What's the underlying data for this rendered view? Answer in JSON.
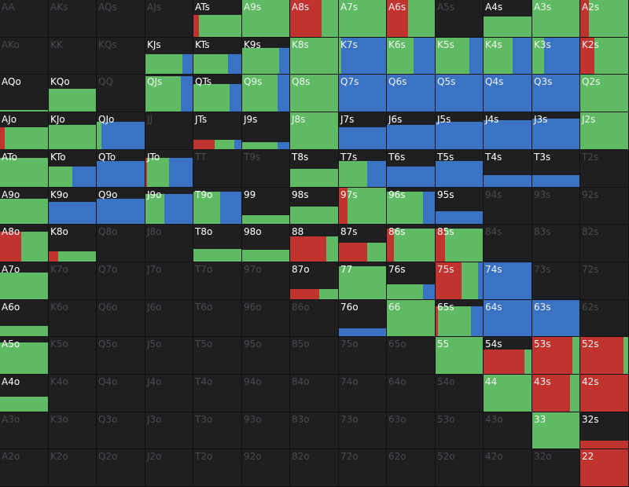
{
  "legend_colors": {
    "raise": "#c0332e",
    "call": "#5fbb63",
    "fold": "#3a73c4"
  },
  "rows": [
    [
      {
        "label": "AA"
      },
      {
        "label": "AKs"
      },
      {
        "label": "AQs"
      },
      {
        "label": "AJs"
      },
      {
        "label": "ATs",
        "h": 0.6,
        "r": 0.12,
        "c": 0.88,
        "f": 0
      },
      {
        "label": "A9s",
        "h": 1,
        "r": 0,
        "c": 1,
        "f": 0
      },
      {
        "label": "A8s",
        "h": 1,
        "r": 0.65,
        "c": 0.35,
        "f": 0
      },
      {
        "label": "A7s",
        "h": 1,
        "r": 0,
        "c": 1,
        "f": 0
      },
      {
        "label": "A6s",
        "h": 1,
        "r": 0.45,
        "c": 0.55,
        "f": 0
      },
      {
        "label": "A5s"
      },
      {
        "label": "A4s",
        "h": 0.55,
        "r": 0,
        "c": 1,
        "f": 0
      },
      {
        "label": "A3s",
        "h": 1,
        "r": 0,
        "c": 1,
        "f": 0
      },
      {
        "label": "A2s",
        "h": 1,
        "r": 0.18,
        "c": 0.82,
        "f": 0
      }
    ],
    [
      {
        "label": "AKo"
      },
      {
        "label": "KK"
      },
      {
        "label": "KQs"
      },
      {
        "label": "KJs",
        "h": 0.55,
        "r": 0,
        "c": 0.78,
        "f": 0.22
      },
      {
        "label": "KTs",
        "h": 0.55,
        "r": 0,
        "c": 0.72,
        "f": 0.28
      },
      {
        "label": "K9s",
        "h": 0.72,
        "r": 0,
        "c": 0.78,
        "f": 0.22
      },
      {
        "label": "K8s",
        "h": 1,
        "r": 0,
        "c": 1,
        "f": 0
      },
      {
        "label": "K7s",
        "h": 1,
        "r": 0,
        "c": 0.05,
        "f": 0.95
      },
      {
        "label": "K6s",
        "h": 1,
        "r": 0,
        "c": 0.55,
        "f": 0.45
      },
      {
        "label": "K5s",
        "h": 1,
        "r": 0,
        "c": 0.72,
        "f": 0.28
      },
      {
        "label": "K4s",
        "h": 1,
        "r": 0,
        "c": 0.6,
        "f": 0.4
      },
      {
        "label": "K3s",
        "h": 1,
        "r": 0,
        "c": 0.25,
        "f": 0.75
      },
      {
        "label": "K2s",
        "h": 1,
        "r": 0.3,
        "c": 0.7,
        "f": 0
      }
    ],
    [
      {
        "label": "AQo",
        "h": 0.04,
        "r": 0,
        "c": 1,
        "f": 0
      },
      {
        "label": "KQo",
        "h": 0.62,
        "r": 0,
        "c": 1,
        "f": 0
      },
      {
        "label": "QQ"
      },
      {
        "label": "QJs",
        "h": 0.95,
        "r": 0,
        "c": 0.75,
        "f": 0.25
      },
      {
        "label": "QTs",
        "h": 0.75,
        "r": 0,
        "c": 0.75,
        "f": 0.25
      },
      {
        "label": "Q9s",
        "h": 1,
        "r": 0,
        "c": 0.75,
        "f": 0.25
      },
      {
        "label": "Q8s",
        "h": 1,
        "r": 0,
        "c": 1,
        "f": 0
      },
      {
        "label": "Q7s",
        "h": 1,
        "r": 0,
        "c": 0,
        "f": 1
      },
      {
        "label": "Q6s",
        "h": 1,
        "r": 0,
        "c": 0,
        "f": 1
      },
      {
        "label": "Q5s",
        "h": 1,
        "r": 0,
        "c": 0,
        "f": 1
      },
      {
        "label": "Q4s",
        "h": 1,
        "r": 0,
        "c": 0,
        "f": 1
      },
      {
        "label": "Q3s",
        "h": 1,
        "r": 0,
        "c": 0,
        "f": 1
      },
      {
        "label": "Q2s",
        "h": 1,
        "r": 0,
        "c": 1,
        "f": 0
      }
    ],
    [
      {
        "label": "AJo",
        "h": 0.6,
        "r": 0.1,
        "c": 0.9,
        "f": 0
      },
      {
        "label": "KJo",
        "h": 0.65,
        "r": 0,
        "c": 1,
        "f": 0
      },
      {
        "label": "QJo",
        "h": 0.75,
        "r": 0,
        "c": 0.1,
        "f": 0.9
      },
      {
        "label": "JJ"
      },
      {
        "label": "JTs",
        "h": 0.25,
        "r": 0.45,
        "c": 0.4,
        "f": 0.15
      },
      {
        "label": "J9s",
        "h": 0.2,
        "r": 0,
        "c": 0.75,
        "f": 0.25
      },
      {
        "label": "J8s",
        "h": 1,
        "r": 0,
        "c": 1,
        "f": 0
      },
      {
        "label": "J7s",
        "h": 0.6,
        "r": 0,
        "c": 0,
        "f": 1
      },
      {
        "label": "J6s",
        "h": 0.65,
        "r": 0,
        "c": 0,
        "f": 1
      },
      {
        "label": "J5s",
        "h": 0.75,
        "r": 0,
        "c": 0,
        "f": 1
      },
      {
        "label": "J4s",
        "h": 0.78,
        "r": 0,
        "c": 0,
        "f": 1
      },
      {
        "label": "J3s",
        "h": 0.82,
        "r": 0,
        "c": 0,
        "f": 1
      },
      {
        "label": "J2s",
        "h": 1,
        "r": 0,
        "c": 1,
        "f": 0
      }
    ],
    [
      {
        "label": "ATo",
        "h": 0.78,
        "r": 0,
        "c": 1,
        "f": 0
      },
      {
        "label": "KTo",
        "h": 0.55,
        "r": 0,
        "c": 0.5,
        "f": 0.5
      },
      {
        "label": "QTo",
        "h": 0.7,
        "r": 0,
        "c": 0,
        "f": 1
      },
      {
        "label": "JTo",
        "h": 0.78,
        "r": 0.04,
        "c": 0.46,
        "f": 0.5
      },
      {
        "label": "TT"
      },
      {
        "label": "T9s"
      },
      {
        "label": "T8s",
        "h": 0.48,
        "r": 0,
        "c": 1,
        "f": 0
      },
      {
        "label": "T7s",
        "h": 0.7,
        "r": 0,
        "c": 0.6,
        "f": 0.4
      },
      {
        "label": "T6s",
        "h": 0.55,
        "r": 0,
        "c": 0,
        "f": 1
      },
      {
        "label": "T5s",
        "h": 0.7,
        "r": 0,
        "c": 0,
        "f": 1
      },
      {
        "label": "T4s",
        "h": 0.32,
        "r": 0,
        "c": 0,
        "f": 1
      },
      {
        "label": "T3s",
        "h": 0.32,
        "r": 0,
        "c": 0,
        "f": 1
      },
      {
        "label": "T2s"
      }
    ],
    [
      {
        "label": "A9o",
        "h": 0.7,
        "r": 0,
        "c": 1,
        "f": 0
      },
      {
        "label": "K9o",
        "h": 0.6,
        "r": 0,
        "c": 0,
        "f": 1
      },
      {
        "label": "Q9o",
        "h": 0.7,
        "r": 0,
        "c": 0,
        "f": 1
      },
      {
        "label": "J9o",
        "h": 0.82,
        "r": 0,
        "c": 0.4,
        "f": 0.6
      },
      {
        "label": "T9o",
        "h": 0.9,
        "r": 0,
        "c": 0.55,
        "f": 0.45
      },
      {
        "label": "99",
        "h": 0.25,
        "r": 0,
        "c": 1,
        "f": 0
      },
      {
        "label": "98s",
        "h": 0.48,
        "r": 0,
        "c": 1,
        "f": 0
      },
      {
        "label": "97s",
        "h": 1,
        "r": 0.18,
        "c": 0.82,
        "f": 0
      },
      {
        "label": "96s",
        "h": 0.9,
        "r": 0,
        "c": 0.75,
        "f": 0.25
      },
      {
        "label": "95s",
        "h": 0.35,
        "r": 0,
        "c": 0,
        "f": 1
      },
      {
        "label": "94s"
      },
      {
        "label": "93s"
      },
      {
        "label": "92s"
      }
    ],
    [
      {
        "label": "A8o",
        "h": 0.8,
        "r": 0.45,
        "c": 0.55,
        "f": 0
      },
      {
        "label": "K8o",
        "h": 0.28,
        "r": 0.2,
        "c": 0.8,
        "f": 0
      },
      {
        "label": "Q8o"
      },
      {
        "label": "J8o"
      },
      {
        "label": "T8o",
        "h": 0.35,
        "r": 0,
        "c": 1,
        "f": 0
      },
      {
        "label": "98o",
        "h": 0.32,
        "r": 0,
        "c": 1,
        "f": 0
      },
      {
        "label": "88",
        "h": 0.68,
        "r": 0.75,
        "c": 0.25,
        "f": 0
      },
      {
        "label": "87s",
        "h": 0.52,
        "r": 0.6,
        "c": 0.4,
        "f": 0
      },
      {
        "label": "86s",
        "h": 0.9,
        "r": 0.15,
        "c": 0.85,
        "f": 0
      },
      {
        "label": "85s",
        "h": 0.9,
        "r": 0.2,
        "c": 0.8,
        "f": 0
      },
      {
        "label": "84s"
      },
      {
        "label": "83s"
      },
      {
        "label": "82s"
      }
    ],
    [
      {
        "label": "A7o",
        "h": 0.72,
        "r": 0,
        "c": 1,
        "f": 0
      },
      {
        "label": "K7o"
      },
      {
        "label": "Q7o"
      },
      {
        "label": "J7o"
      },
      {
        "label": "T7o"
      },
      {
        "label": "97o"
      },
      {
        "label": "87o",
        "h": 0.28,
        "r": 0.6,
        "c": 0.4,
        "f": 0
      },
      {
        "label": "77",
        "h": 0.9,
        "r": 0,
        "c": 1,
        "f": 0
      },
      {
        "label": "76s",
        "h": 0.4,
        "r": 0,
        "c": 0.75,
        "f": 0.25
      },
      {
        "label": "75s",
        "h": 1,
        "r": 0.55,
        "c": 0.35,
        "f": 0.1
      },
      {
        "label": "74s",
        "h": 1,
        "r": 0,
        "c": 0,
        "f": 1
      },
      {
        "label": "73s"
      },
      {
        "label": "72s"
      }
    ],
    [
      {
        "label": "A6o",
        "h": 0.28,
        "r": 0,
        "c": 1,
        "f": 0
      },
      {
        "label": "K6o"
      },
      {
        "label": "Q6o"
      },
      {
        "label": "J6o"
      },
      {
        "label": "T6o"
      },
      {
        "label": "96o"
      },
      {
        "label": "86o"
      },
      {
        "label": "76o",
        "h": 0.22,
        "r": 0,
        "c": 0,
        "f": 1
      },
      {
        "label": "66",
        "h": 1,
        "r": 0,
        "c": 1,
        "f": 0
      },
      {
        "label": "65s",
        "h": 0.82,
        "r": 0.05,
        "c": 0.7,
        "f": 0.25
      },
      {
        "label": "64s",
        "h": 1,
        "r": 0,
        "c": 0,
        "f": 1
      },
      {
        "label": "63s",
        "h": 1,
        "r": 0,
        "c": 0,
        "f": 1
      },
      {
        "label": "62s"
      }
    ],
    [
      {
        "label": "A5o",
        "h": 0.85,
        "r": 0,
        "c": 1,
        "f": 0
      },
      {
        "label": "K5o"
      },
      {
        "label": "Q5o"
      },
      {
        "label": "J5o"
      },
      {
        "label": "T5o"
      },
      {
        "label": "95o"
      },
      {
        "label": "85o"
      },
      {
        "label": "75o"
      },
      {
        "label": "65o"
      },
      {
        "label": "55",
        "h": 1,
        "r": 0,
        "c": 1,
        "f": 0
      },
      {
        "label": "54s",
        "h": 0.65,
        "r": 0.85,
        "c": 0.15,
        "f": 0
      },
      {
        "label": "53s",
        "h": 1,
        "r": 0.85,
        "c": 0.15,
        "f": 0
      },
      {
        "label": "52s",
        "h": 1,
        "r": 0.9,
        "c": 0.1,
        "f": 0
      }
    ],
    [
      {
        "label": "A4o",
        "h": 0.4,
        "r": 0,
        "c": 1,
        "f": 0
      },
      {
        "label": "K4o"
      },
      {
        "label": "Q4o"
      },
      {
        "label": "J4o"
      },
      {
        "label": "T4o"
      },
      {
        "label": "94o"
      },
      {
        "label": "84o"
      },
      {
        "label": "74o"
      },
      {
        "label": "64o"
      },
      {
        "label": "54o"
      },
      {
        "label": "44",
        "h": 1,
        "r": 0,
        "c": 1,
        "f": 0
      },
      {
        "label": "43s",
        "h": 1,
        "r": 0.8,
        "c": 0.2,
        "f": 0
      },
      {
        "label": "42s",
        "h": 1,
        "r": 1,
        "c": 0,
        "f": 0
      }
    ],
    [
      {
        "label": "A3o"
      },
      {
        "label": "K3o"
      },
      {
        "label": "Q3o"
      },
      {
        "label": "J3o"
      },
      {
        "label": "T3o"
      },
      {
        "label": "93o"
      },
      {
        "label": "83o"
      },
      {
        "label": "73o"
      },
      {
        "label": "63o"
      },
      {
        "label": "53o"
      },
      {
        "label": "43o"
      },
      {
        "label": "33",
        "h": 1,
        "r": 0,
        "c": 1,
        "f": 0
      },
      {
        "label": "32s",
        "h": 0.22,
        "r": 1,
        "c": 0,
        "f": 0
      }
    ],
    [
      {
        "label": "A2o"
      },
      {
        "label": "K2o"
      },
      {
        "label": "Q2o"
      },
      {
        "label": "J2o"
      },
      {
        "label": "T2o"
      },
      {
        "label": "92o"
      },
      {
        "label": "82o"
      },
      {
        "label": "72o"
      },
      {
        "label": "62o"
      },
      {
        "label": "52o"
      },
      {
        "label": "42o"
      },
      {
        "label": "32o"
      },
      {
        "label": "22",
        "h": 1,
        "r": 1,
        "c": 0,
        "f": 0
      }
    ]
  ]
}
